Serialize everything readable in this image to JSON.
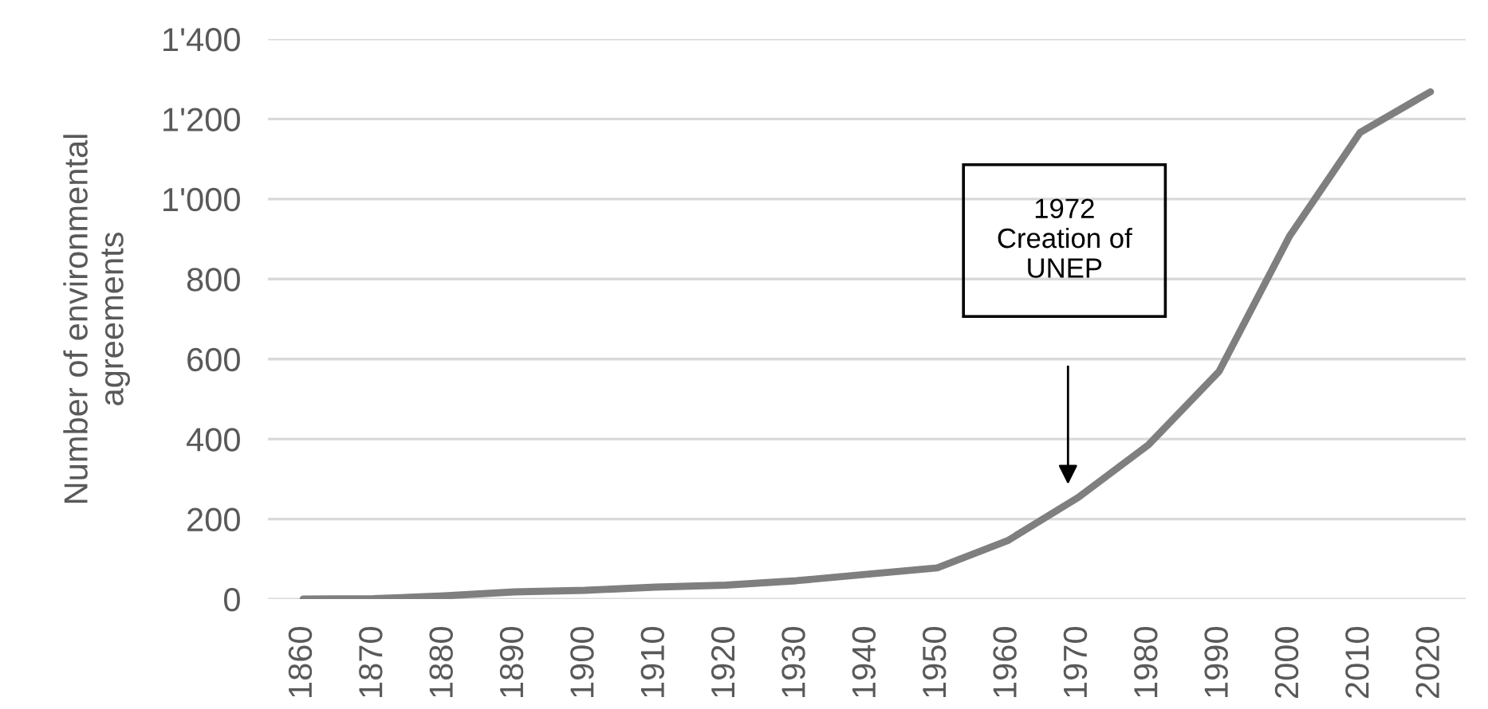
{
  "chart_data": {
    "type": "line",
    "ylabel": "Number of environmental\nagreements",
    "categories": [
      "1860",
      "1870",
      "1880",
      "1890",
      "1900",
      "1910",
      "1920",
      "1930",
      "1940",
      "1950",
      "1960",
      "1970",
      "1980",
      "1990",
      "2000",
      "2010",
      "2020"
    ],
    "series": [
      {
        "color": "#7f7f7f",
        "values": [
          0,
          1,
          8,
          18,
          22,
          30,
          35,
          46,
          62,
          78,
          146,
          254,
          386,
          569,
          907,
          1166,
          1268
        ]
      }
    ],
    "ylim": [
      0,
      1400
    ],
    "yticks": [
      0,
      200,
      400,
      600,
      800,
      {
        "value": 1000,
        "label": "1'000"
      },
      {
        "value": 1200,
        "label": "1'200"
      },
      {
        "value": 1400,
        "label": "1'400"
      }
    ],
    "grid": "y",
    "marker": "none",
    "line_style": "solid",
    "annotations": [
      "1972\nCreation of\nUNEP"
    ]
  }
}
